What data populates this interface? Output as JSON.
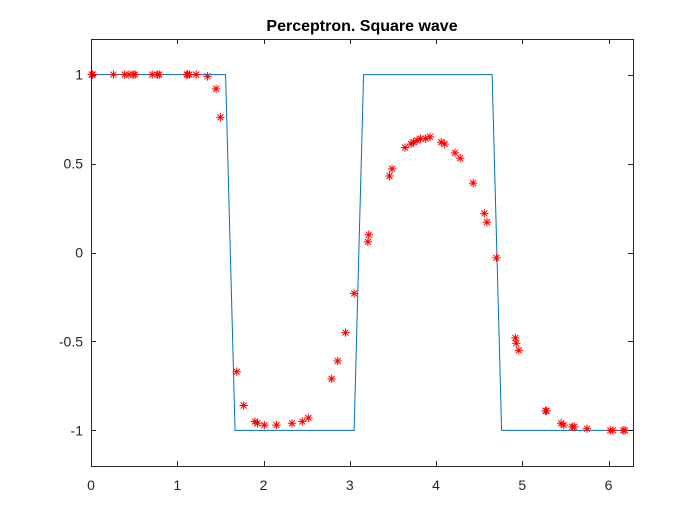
{
  "chart_data": {
    "type": "line",
    "title": "Perceptron. Square wave",
    "xlabel": "",
    "ylabel": "",
    "xlim": [
      0,
      6.2832
    ],
    "ylim": [
      -1.2,
      1.2
    ],
    "grid": false,
    "box": true,
    "xticks": [
      0,
      1,
      2,
      3,
      4,
      5,
      6
    ],
    "xtick_labels": [
      "0",
      "1",
      "2",
      "3",
      "4",
      "5",
      "6"
    ],
    "yticks": [
      1,
      0.5,
      0,
      -0.5,
      -1
    ],
    "ytick_labels": [
      "1",
      "0.5",
      "0",
      "-0.5",
      "-1"
    ],
    "series": [
      {
        "kind": "line",
        "color": "#0072BD",
        "x": [
          0,
          1.56,
          1.67,
          3.05,
          3.16,
          4.65,
          4.76,
          6.2832
        ],
        "y": [
          1,
          1,
          -1,
          -1,
          1,
          1,
          -1,
          -1
        ]
      },
      {
        "kind": "scatter",
        "marker": "asterisk",
        "color": "#FF0000",
        "x": [
          0.01,
          0.02,
          0.26,
          0.39,
          0.44,
          0.49,
          0.51,
          0.71,
          0.77,
          0.79,
          1.11,
          1.12,
          1.14,
          1.22,
          1.35,
          1.45,
          1.5,
          1.69,
          1.77,
          1.9,
          1.93,
          2.01,
          2.15,
          2.33,
          2.45,
          2.52,
          2.79,
          2.86,
          2.95,
          3.05,
          3.21,
          3.22,
          3.46,
          3.49,
          3.64,
          3.71,
          3.74,
          3.78,
          3.82,
          3.88,
          3.93,
          4.06,
          4.1,
          4.22,
          4.28,
          4.43,
          4.56,
          4.59,
          4.7,
          4.92,
          4.93,
          4.96,
          5.27,
          5.28,
          5.45,
          5.48,
          5.58,
          5.6,
          5.75,
          6.02,
          6.05,
          6.17,
          6.19
        ],
        "y": [
          1.0,
          1.0,
          1.0,
          1.0,
          1.0,
          1.0,
          1.0,
          1.0,
          1.0,
          1.0,
          1.0,
          1.0,
          1.0,
          1.0,
          0.99,
          0.92,
          0.76,
          -0.67,
          -0.86,
          -0.95,
          -0.96,
          -0.97,
          -0.97,
          -0.96,
          -0.95,
          -0.93,
          -0.71,
          -0.61,
          -0.45,
          -0.23,
          0.06,
          0.1,
          0.43,
          0.47,
          0.59,
          0.61,
          0.62,
          0.63,
          0.64,
          0.64,
          0.65,
          0.62,
          0.61,
          0.56,
          0.53,
          0.39,
          0.22,
          0.17,
          -0.03,
          -0.48,
          -0.51,
          -0.55,
          -0.89,
          -0.89,
          -0.96,
          -0.97,
          -0.98,
          -0.98,
          -0.99,
          -1.0,
          -1.0,
          -1.0,
          -1.0
        ]
      }
    ]
  }
}
